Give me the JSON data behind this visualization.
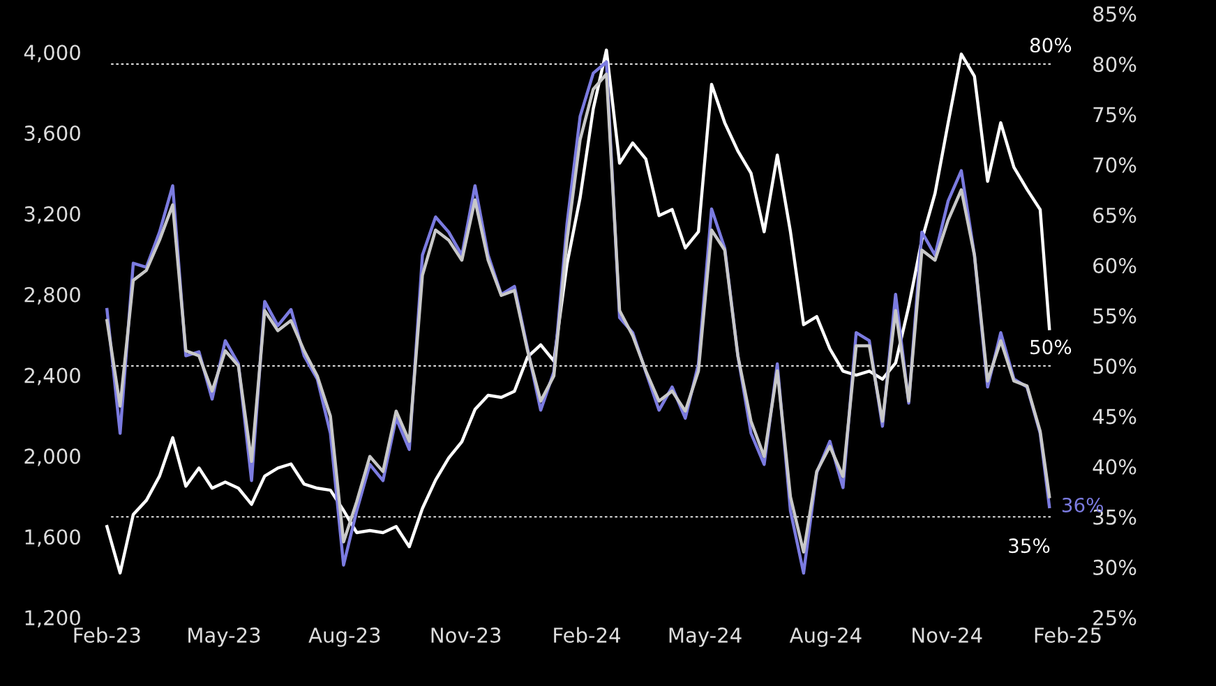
{
  "chart_data": {
    "type": "line",
    "x": [
      "2023-02-01",
      "2023-02-11",
      "2023-02-21",
      "2023-03-03",
      "2023-03-13",
      "2023-03-23",
      "2023-04-02",
      "2023-04-12",
      "2023-04-22",
      "2023-05-02",
      "2023-05-12",
      "2023-05-22",
      "2023-06-01",
      "2023-06-11",
      "2023-06-21",
      "2023-07-01",
      "2023-07-11",
      "2023-07-21",
      "2023-07-31",
      "2023-08-10",
      "2023-08-20",
      "2023-08-30",
      "2023-09-09",
      "2023-09-19",
      "2023-09-29",
      "2023-10-09",
      "2023-10-19",
      "2023-10-29",
      "2023-11-08",
      "2023-11-18",
      "2023-11-28",
      "2023-12-08",
      "2023-12-18",
      "2023-12-28",
      "2024-01-07",
      "2024-01-17",
      "2024-01-27",
      "2024-02-06",
      "2024-02-16",
      "2024-02-26",
      "2024-03-07",
      "2024-03-17",
      "2024-03-27",
      "2024-04-06",
      "2024-04-16",
      "2024-04-26",
      "2024-05-06",
      "2024-05-16",
      "2024-05-26",
      "2024-06-05",
      "2024-06-15",
      "2024-06-25",
      "2024-07-05",
      "2024-07-15",
      "2024-07-25",
      "2024-08-04",
      "2024-08-14",
      "2024-08-24",
      "2024-09-03",
      "2024-09-13",
      "2024-09-23",
      "2024-10-03",
      "2024-10-13",
      "2024-10-23",
      "2024-11-02",
      "2024-11-12",
      "2024-11-22",
      "2024-12-02",
      "2024-12-12",
      "2024-12-22",
      "2025-01-01",
      "2025-01-11",
      "2025-01-18"
    ],
    "series": [
      {
        "color": "#7b7be0",
        "axis": "y2",
        "values": [
          55.6,
          43.3,
          60.2,
          59.8,
          63.3,
          67.9,
          51.0,
          51.4,
          46.7,
          52.5,
          50.2,
          38.6,
          56.4,
          54.0,
          55.6,
          51.0,
          48.7,
          43.3,
          30.2,
          35.6,
          40.2,
          38.6,
          44.8,
          41.7,
          61.0,
          64.8,
          63.3,
          61.0,
          67.9,
          61.0,
          57.1,
          57.9,
          51.7,
          45.6,
          49.4,
          64.1,
          74.8,
          79.1,
          80.2,
          54.8,
          53.3,
          49.4,
          45.6,
          47.9,
          44.8,
          50.2,
          65.6,
          61.7,
          51.0,
          43.3,
          40.2,
          50.2,
          35.6,
          29.4,
          39.4,
          42.5,
          37.9,
          53.3,
          52.5,
          44.0,
          57.1,
          46.3,
          63.3,
          61.0,
          66.4,
          69.4,
          61.0,
          47.9,
          53.3,
          48.7,
          47.9,
          43.3,
          36.0
        ]
      },
      {
        "color": "#c8c8c8",
        "axis": "y2",
        "values": [
          54.5,
          46.0,
          58.5,
          59.5,
          62.5,
          66.0,
          51.5,
          51.0,
          47.5,
          51.5,
          50.0,
          40.5,
          55.5,
          53.5,
          54.5,
          51.5,
          49.0,
          45.0,
          32.5,
          36.5,
          41.0,
          39.5,
          45.5,
          42.5,
          59.0,
          63.5,
          62.5,
          60.5,
          66.5,
          60.5,
          57.0,
          57.5,
          51.5,
          46.5,
          49.0,
          62.5,
          72.5,
          77.5,
          79.0,
          55.5,
          53.0,
          49.5,
          46.5,
          47.5,
          45.5,
          49.5,
          63.5,
          61.5,
          51.0,
          44.5,
          41.0,
          49.5,
          37.0,
          31.5,
          39.5,
          42.0,
          39.0,
          52.0,
          52.0,
          44.5,
          55.5,
          46.5,
          61.5,
          60.5,
          64.5,
          67.5,
          61.0,
          48.5,
          52.5,
          48.5,
          48.0,
          43.5,
          37.0
        ]
      },
      {
        "color": "#ffffff",
        "axis": "y",
        "values": [
          1650,
          1420,
          1710,
          1780,
          1900,
          2090,
          1850,
          1940,
          1840,
          1870,
          1840,
          1760,
          1900,
          1940,
          1960,
          1860,
          1840,
          1830,
          1730,
          1620,
          1630,
          1620,
          1650,
          1550,
          1740,
          1880,
          1990,
          2070,
          2230,
          2300,
          2290,
          2320,
          2490,
          2550,
          2470,
          2950,
          3280,
          3720,
          4010,
          3450,
          3550,
          3470,
          3190,
          3220,
          3030,
          3110,
          3840,
          3650,
          3510,
          3400,
          3110,
          3490,
          3110,
          2650,
          2690,
          2530,
          2420,
          2400,
          2420,
          2380,
          2460,
          2740,
          3070,
          3300,
          3650,
          3990,
          3880,
          3360,
          3650,
          3430,
          3320,
          3220,
          2630
        ]
      }
    ],
    "xlim": [
      "2023-01-20",
      "2025-02-12"
    ],
    "xticks": [
      {
        "value": "2023-02-01",
        "label": "Feb-23"
      },
      {
        "value": "2023-05-01",
        "label": "May-23"
      },
      {
        "value": "2023-08-01",
        "label": "Aug-23"
      },
      {
        "value": "2023-11-01",
        "label": "Nov-23"
      },
      {
        "value": "2024-02-01",
        "label": "Feb-24"
      },
      {
        "value": "2024-05-01",
        "label": "May-24"
      },
      {
        "value": "2024-08-01",
        "label": "Aug-24"
      },
      {
        "value": "2024-11-01",
        "label": "Nov-24"
      },
      {
        "value": "2025-02-01",
        "label": "Feb-25"
      }
    ],
    "ylim": [
      1200,
      4190
    ],
    "yticks": [
      {
        "value": 1200,
        "label": "1,200"
      },
      {
        "value": 1600,
        "label": "1,600"
      },
      {
        "value": 2000,
        "label": "2,000"
      },
      {
        "value": 2400,
        "label": "2,400"
      },
      {
        "value": 2800,
        "label": "2,800"
      },
      {
        "value": 3200,
        "label": "3,200"
      },
      {
        "value": 3600,
        "label": "3,600"
      },
      {
        "value": 4000,
        "label": "4,000"
      }
    ],
    "y2lim": [
      25,
      85
    ],
    "y2ticks": [
      {
        "value": 25,
        "label": "25%"
      },
      {
        "value": 30,
        "label": "30%"
      },
      {
        "value": 35,
        "label": "35%"
      },
      {
        "value": 40,
        "label": "40%"
      },
      {
        "value": 45,
        "label": "45%"
      },
      {
        "value": 50,
        "label": "50%"
      },
      {
        "value": 55,
        "label": "55%"
      },
      {
        "value": 60,
        "label": "60%"
      },
      {
        "value": 65,
        "label": "65%"
      },
      {
        "value": 70,
        "label": "70%"
      },
      {
        "value": 75,
        "label": "75%"
      },
      {
        "value": 80,
        "label": "80%"
      },
      {
        "value": 85,
        "label": "85%"
      }
    ],
    "ref_lines": [
      {
        "axis": "y2",
        "value": 80,
        "label": "80%",
        "color": "#ffffff",
        "line_style": "dotted"
      },
      {
        "axis": "y2",
        "value": 50,
        "label": "50%",
        "color": "#ffffff",
        "line_style": "dotted"
      },
      {
        "axis": "y2",
        "value": 35,
        "label": "35%",
        "color": "#ffffff",
        "line_style": "dotted"
      }
    ],
    "annotations": [
      "36%"
    ],
    "grid": false,
    "legend": false
  }
}
